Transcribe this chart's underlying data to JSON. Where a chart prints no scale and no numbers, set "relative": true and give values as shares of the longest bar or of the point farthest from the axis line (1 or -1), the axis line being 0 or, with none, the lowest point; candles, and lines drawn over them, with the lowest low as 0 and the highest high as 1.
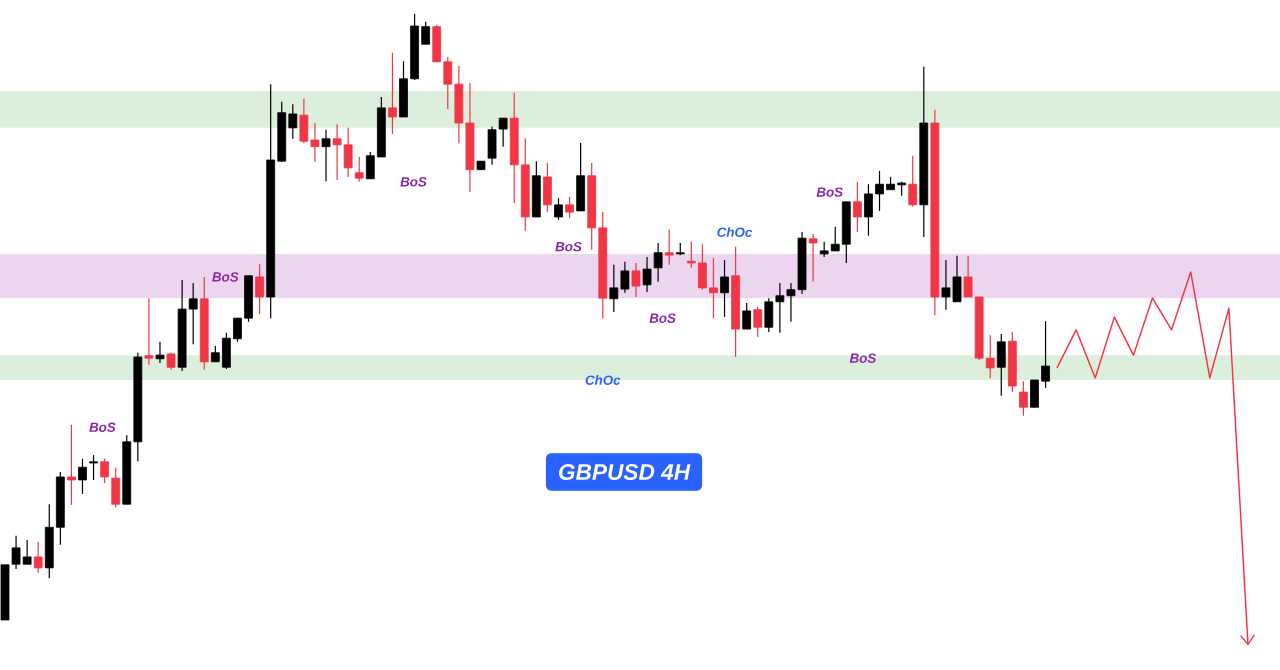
{
  "chart_data": [
    {
      "type": "candlestick",
      "title": "GBPUSD 4H",
      "relative": true,
      "categories": [
        null,
        null,
        null,
        null,
        null,
        null,
        null,
        null,
        null,
        null,
        null,
        null,
        null,
        null,
        null,
        null,
        null,
        null,
        null,
        null,
        null,
        null,
        null,
        null,
        null,
        null,
        null,
        null,
        null,
        null,
        null,
        null,
        null,
        null,
        null,
        null,
        null,
        null,
        null,
        null,
        null,
        null,
        null,
        null,
        null,
        null,
        null,
        null,
        null,
        null,
        null,
        null,
        null,
        null,
        null,
        null,
        null,
        null,
        null,
        null,
        null,
        null,
        null,
        null,
        null,
        null,
        null,
        null,
        null,
        null,
        null,
        null,
        null,
        null,
        null,
        null,
        null,
        null,
        null,
        null,
        null,
        null,
        null,
        null,
        null,
        null,
        null,
        null,
        null,
        null,
        null,
        null,
        null,
        null,
        null
      ],
      "ohlc": [
        [
          0,
          0.091,
          0,
          0.091
        ],
        [
          0.092,
          0.139,
          0.084,
          0.119
        ],
        [
          0.092,
          0.132,
          0.092,
          0.104
        ],
        [
          0.104,
          0.129,
          0.078,
          0.086
        ],
        [
          0.086,
          0.191,
          0.069,
          0.153
        ],
        [
          0.153,
          0.244,
          0.124,
          0.236
        ],
        [
          0.236,
          0.322,
          0.19,
          0.231
        ],
        [
          0.231,
          0.266,
          0.208,
          0.252
        ],
        [
          0.259,
          0.272,
          0.231,
          0.261
        ],
        [
          0.261,
          0.266,
          0.226,
          0.236
        ],
        [
          0.234,
          0.251,
          0.186,
          0.191
        ],
        [
          0.191,
          0.305,
          0.191,
          0.294
        ],
        [
          0.294,
          0.441,
          0.262,
          0.434
        ],
        [
          0.436,
          0.531,
          0.421,
          0.432
        ],
        [
          0.431,
          0.459,
          0.424,
          0.437
        ],
        [
          0.439,
          0.441,
          0.413,
          0.417
        ],
        [
          0.417,
          0.561,
          0.411,
          0.513
        ],
        [
          0.513,
          0.556,
          0.455,
          0.53
        ],
        [
          0.53,
          0.566,
          0.413,
          0.426
        ],
        [
          0.426,
          0.452,
          0.426,
          0.441
        ],
        [
          0.417,
          0.474,
          0.414,
          0.465
        ],
        [
          0.464,
          0.498,
          0.459,
          0.498
        ],
        [
          0.498,
          0.568,
          0.492,
          0.568
        ],
        [
          0.566,
          0.587,
          0.505,
          0.533
        ],
        [
          0.533,
          0.884,
          0.498,
          0.759
        ],
        [
          0.757,
          0.855,
          0.756,
          0.837
        ],
        [
          0.812,
          0.851,
          0.794,
          0.835
        ],
        [
          0.833,
          0.86,
          0.787,
          0.79
        ],
        [
          0.792,
          0.82,
          0.756,
          0.781
        ],
        [
          0.781,
          0.809,
          0.724,
          0.794
        ],
        [
          0.794,
          0.818,
          0.726,
          0.784
        ],
        [
          0.784,
          0.812,
          0.731,
          0.746
        ],
        [
          0.738,
          0.764,
          0.723,
          0.729
        ],
        [
          0.728,
          0.772,
          0.728,
          0.766
        ],
        [
          0.764,
          0.863,
          0.764,
          0.845
        ],
        [
          0.845,
          0.936,
          0.802,
          0.83
        ],
        [
          0.83,
          0.922,
          0.83,
          0.893
        ],
        [
          0.893,
          1,
          0.891,
          0.98
        ],
        [
          0.95,
          0.987,
          0.95,
          0.979
        ],
        [
          0.979,
          0.982,
          0.921,
          0.921
        ],
        [
          0.921,
          0.929,
          0.843,
          0.884
        ],
        [
          0.884,
          0.914,
          0.787,
          0.82
        ],
        [
          0.82,
          0.886,
          0.706,
          0.743
        ],
        [
          0.743,
          0.757,
          0.743,
          0.757
        ],
        [
          0.762,
          0.814,
          0.751,
          0.809
        ],
        [
          0.81,
          0.828,
          0.781,
          0.828
        ],
        [
          0.828,
          0.87,
          0.688,
          0.751
        ],
        [
          0.751,
          0.795,
          0.642,
          0.665
        ],
        [
          0.665,
          0.757,
          0.665,
          0.733
        ],
        [
          0.731,
          0.754,
          0.673,
          0.685
        ],
        [
          0.665,
          0.696,
          0.66,
          0.685
        ],
        [
          0.685,
          0.698,
          0.663,
          0.673
        ],
        [
          0.675,
          0.787,
          0.675,
          0.733
        ],
        [
          0.733,
          0.754,
          0.611,
          0.647
        ],
        [
          0.647,
          0.673,
          0.498,
          0.531
        ],
        [
          0.53,
          0.586,
          0.508,
          0.548
        ],
        [
          0.546,
          0.591,
          0.54,
          0.576
        ],
        [
          0.576,
          0.589,
          0.533,
          0.551
        ],
        [
          0.553,
          0.599,
          0.541,
          0.579
        ],
        [
          0.581,
          0.622,
          0.558,
          0.606
        ],
        [
          0.606,
          0.644,
          0.586,
          0.602
        ],
        [
          0.604,
          0.622,
          0.602,
          0.606
        ],
        [
          0.592,
          0.625,
          0.581,
          0.589
        ],
        [
          0.589,
          0.62,
          0.545,
          0.548
        ],
        [
          0.548,
          0.597,
          0.498,
          0.54
        ],
        [
          0.54,
          0.594,
          0.5,
          0.566
        ],
        [
          0.568,
          0.616,
          0.434,
          0.48
        ],
        [
          0.48,
          0.523,
          0.48,
          0.51
        ],
        [
          0.512,
          0.517,
          0.467,
          0.483
        ],
        [
          0.483,
          0.531,
          0.475,
          0.525
        ],
        [
          0.525,
          0.556,
          0.474,
          0.535
        ],
        [
          0.535,
          0.556,
          0.492,
          0.545
        ],
        [
          0.545,
          0.64,
          0.538,
          0.63
        ],
        [
          0.629,
          0.637,
          0.558,
          0.622
        ],
        [
          0.604,
          0.624,
          0.599,
          0.609
        ],
        [
          0.609,
          0.649,
          0.609,
          0.62
        ],
        [
          0.62,
          0.69,
          0.589,
          0.69
        ],
        [
          0.69,
          0.723,
          0.64,
          0.665
        ],
        [
          0.665,
          0.719,
          0.634,
          0.703
        ],
        [
          0.703,
          0.741,
          0.675,
          0.719
        ],
        [
          0.71,
          0.731,
          0.71,
          0.719
        ],
        [
          0.718,
          0.723,
          0.7,
          0.721
        ],
        [
          0.719,
          0.766,
          0.682,
          0.685
        ],
        [
          0.685,
          0.913,
          0.632,
          0.82
        ],
        [
          0.82,
          0.842,
          0.503,
          0.533
        ],
        [
          0.533,
          0.594,
          0.512,
          0.548
        ],
        [
          0.525,
          0.601,
          0.525,
          0.566
        ],
        [
          0.566,
          0.601,
          0.533,
          0.533
        ],
        [
          0.533,
          0.533,
          0.429,
          0.432
        ],
        [
          0.432,
          0.47,
          0.399,
          0.416
        ],
        [
          0.417,
          0.472,
          0.37,
          0.459
        ],
        [
          0.46,
          0.475,
          0.376,
          0.386
        ],
        [
          0.376,
          0.394,
          0.337,
          0.351
        ],
        [
          0.351,
          0.396,
          0.351,
          0.396
        ],
        [
          0.394,
          0.493,
          0.383,
          0.419
        ]
      ],
      "bands": [
        {
          "axis": "y",
          "from": 0.812,
          "to": 0.873,
          "color": "#dcefdc"
        },
        {
          "axis": "y",
          "from": 0.396,
          "to": 0.437,
          "color": "#dcefdc"
        },
        {
          "axis": "y",
          "from": 0.531,
          "to": 0.604,
          "color": "#ecd5ee"
        }
      ],
      "annotations": [
        "BoS",
        "BoS",
        "BoS",
        "BoS",
        "BoS",
        "ChOc",
        "BoS",
        "BoS",
        "ChOc"
      ]
    },
    {
      "type": "line",
      "relative": true,
      "color": "#f23645",
      "categories": [
        null,
        null,
        null,
        null,
        null,
        null,
        null,
        null,
        null,
        null,
        null
      ],
      "values": [
        0.743,
        0.845,
        0.716,
        0.879,
        0.777,
        0.93,
        0.845,
        1,
        0.716,
        0.903,
        0
      ]
    }
  ]
}
